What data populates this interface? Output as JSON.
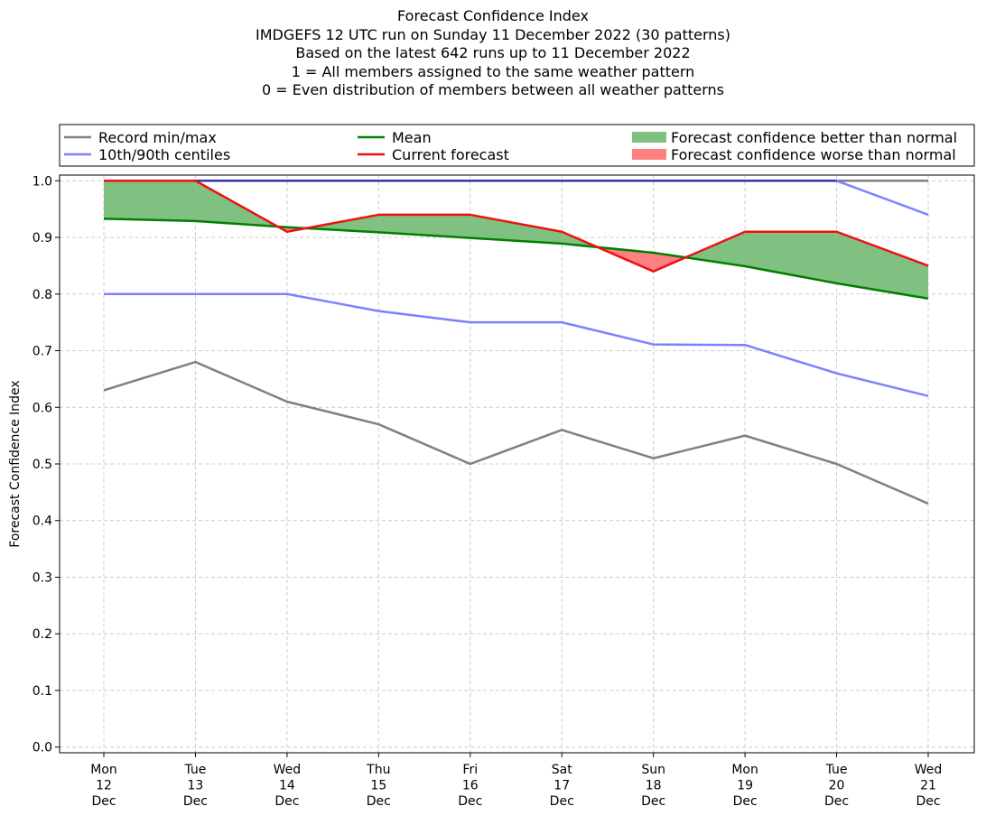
{
  "titles": {
    "line1": "Forecast Confidence Index",
    "line2": "IMDGEFS 12 UTC run on Sunday 11 December 2022 (30 patterns)",
    "line3": "Based on the latest 642 runs up to 11 December 2022",
    "line4": "1 = All members assigned to the same weather pattern",
    "line5": "0 = Even distribution of members between all weather patterns"
  },
  "legend": {
    "record": "Record min/max",
    "centiles": "10th/90th centiles",
    "mean": "Mean",
    "current": "Current forecast",
    "better": "Forecast confidence better than normal",
    "worse": "Forecast confidence worse than normal"
  },
  "colors": {
    "record": "#808080",
    "centiles": "#8080ff",
    "centiles_top": "#3333aa",
    "mean": "#008000",
    "current": "#ee1111",
    "better": "#80c080",
    "worse": "#ff8080",
    "grid": "#cccccc"
  },
  "chart_data": {
    "type": "line",
    "ylabel": "Forecast Confidence Index",
    "ylim": [
      -0.01,
      1.01
    ],
    "yticks": [
      "0.0",
      "0.1",
      "0.2",
      "0.3",
      "0.4",
      "0.5",
      "0.6",
      "0.7",
      "0.8",
      "0.9",
      "1.0"
    ],
    "grid": true,
    "legend_position": "top",
    "categories": [
      [
        "Mon",
        "12",
        "Dec"
      ],
      [
        "Tue",
        "13",
        "Dec"
      ],
      [
        "Wed",
        "14",
        "Dec"
      ],
      [
        "Thu",
        "15",
        "Dec"
      ],
      [
        "Fri",
        "16",
        "Dec"
      ],
      [
        "Sat",
        "17",
        "Dec"
      ],
      [
        "Sun",
        "18",
        "Dec"
      ],
      [
        "Mon",
        "19",
        "Dec"
      ],
      [
        "Tue",
        "20",
        "Dec"
      ],
      [
        "Wed",
        "21",
        "Dec"
      ]
    ],
    "series": [
      {
        "name": "Record min/max",
        "role": "record_min",
        "values": [
          0.63,
          0.68,
          0.61,
          0.57,
          0.5,
          0.56,
          0.51,
          0.55,
          0.5,
          0.43
        ]
      },
      {
        "name": "Record min/max",
        "role": "record_max",
        "values": [
          1.0,
          1.0,
          1.0,
          1.0,
          1.0,
          1.0,
          1.0,
          1.0,
          1.0,
          1.0
        ]
      },
      {
        "name": "10th/90th centiles",
        "role": "p10",
        "values": [
          0.8,
          0.8,
          0.8,
          0.77,
          0.75,
          0.75,
          0.711,
          0.71,
          0.66,
          0.62
        ]
      },
      {
        "name": "10th/90th centiles",
        "role": "p90",
        "values": [
          1.0,
          1.0,
          1.0,
          1.0,
          1.0,
          1.0,
          1.0,
          1.0,
          1.0,
          0.94
        ]
      },
      {
        "name": "Mean",
        "role": "mean",
        "values": [
          0.933,
          0.929,
          0.918,
          0.909,
          0.899,
          0.889,
          0.873,
          0.849,
          0.819,
          0.792
        ]
      },
      {
        "name": "Current forecast",
        "role": "current",
        "values": [
          1.0,
          1.0,
          0.91,
          0.94,
          0.94,
          0.91,
          0.84,
          0.91,
          0.91,
          0.85
        ]
      }
    ]
  }
}
